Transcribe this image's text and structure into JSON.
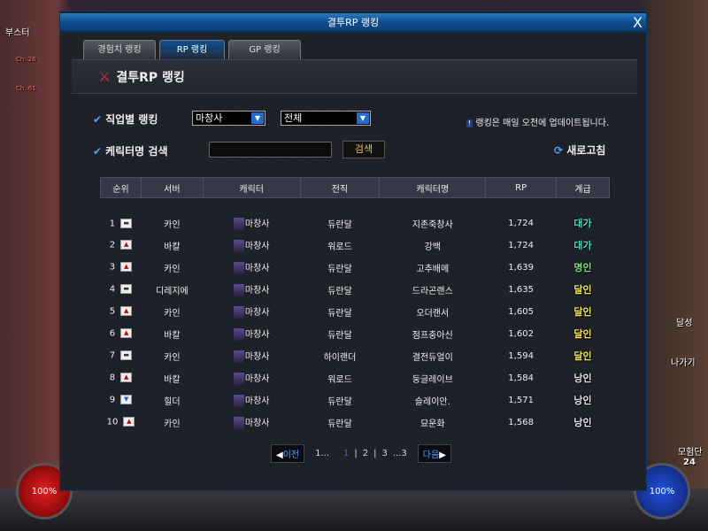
{
  "background": {
    "booster": "부스터",
    "ch1": "Ch. 26",
    "ch2": "Ch. 61",
    "hp": "100%",
    "mp": "100%",
    "adventure": "모험단",
    "adventure_level": "24",
    "exit": "나가기",
    "achieve": "달성"
  },
  "window": {
    "title": "결투RP 랭킹",
    "close": "X"
  },
  "tabs": [
    {
      "label": "경험치 랭킹",
      "active": false
    },
    {
      "label": "RP 랭킹",
      "active": true
    },
    {
      "label": "GP 랭킹",
      "active": false
    }
  ],
  "panel": {
    "heading": "결투RP 랭킹",
    "job_label": "직업별 랭킹",
    "job_select": "마창사",
    "sub_select": "전체",
    "notice": "랭킹은 매일 오전에 업데이트됩니다.",
    "search_label": "케릭터명 검색",
    "search_value": "",
    "search_button": "검색",
    "refresh": "새로고침"
  },
  "table": {
    "columns": [
      "순위",
      "서버",
      "캐릭터",
      "전직",
      "캐릭터명",
      "RP",
      "계급"
    ],
    "rows": [
      {
        "rank": "1",
        "change": "same",
        "server": "카인",
        "job": "마창사",
        "advancement": "듀란달",
        "name": "지존죽창사",
        "rp": "1,724",
        "grade": "대가"
      },
      {
        "rank": "2",
        "change": "up",
        "server": "바칼",
        "job": "마창사",
        "advancement": "워로드",
        "name": "강백",
        "rp": "1,724",
        "grade": "대가"
      },
      {
        "rank": "3",
        "change": "up",
        "server": "카인",
        "job": "마창사",
        "advancement": "듀란달",
        "name": "고추배메",
        "rp": "1,639",
        "grade": "명인"
      },
      {
        "rank": "4",
        "change": "same",
        "server": "디레지에",
        "job": "마창사",
        "advancement": "듀란달",
        "name": "드라곤랜스",
        "rp": "1,635",
        "grade": "달인"
      },
      {
        "rank": "5",
        "change": "up",
        "server": "카인",
        "job": "마창사",
        "advancement": "듀란달",
        "name": "오더랜서",
        "rp": "1,605",
        "grade": "달인"
      },
      {
        "rank": "6",
        "change": "up",
        "server": "바칼",
        "job": "마창사",
        "advancement": "듀란달",
        "name": "점프충아신",
        "rp": "1,602",
        "grade": "달인"
      },
      {
        "rank": "7",
        "change": "same",
        "server": "카인",
        "job": "마창사",
        "advancement": "하이랜더",
        "name": "결전듀얼이",
        "rp": "1,594",
        "grade": "달인"
      },
      {
        "rank": "8",
        "change": "up",
        "server": "바칼",
        "job": "마창사",
        "advancement": "워로드",
        "name": "둥글레이브",
        "rp": "1,584",
        "grade": "낭인"
      },
      {
        "rank": "9",
        "change": "down",
        "server": "힐더",
        "job": "마창사",
        "advancement": "듀란달",
        "name": "슬레이안.",
        "rp": "1,571",
        "grade": "낭인"
      },
      {
        "rank": "10",
        "change": "up",
        "server": "카인",
        "job": "마창사",
        "advancement": "듀란달",
        "name": "묘운화",
        "rp": "1,568",
        "grade": "낭인"
      }
    ]
  },
  "grade_colors": {
    "대가": "#3fe0c0",
    "명인": "#7ee07e",
    "달인": "#f2e94a",
    "낭인": "#e8e8e8"
  },
  "pager": {
    "prev": "이전",
    "first": "1...",
    "pages": [
      "1",
      "2",
      "3"
    ],
    "current": "1",
    "last": "...3",
    "next": "다음"
  }
}
